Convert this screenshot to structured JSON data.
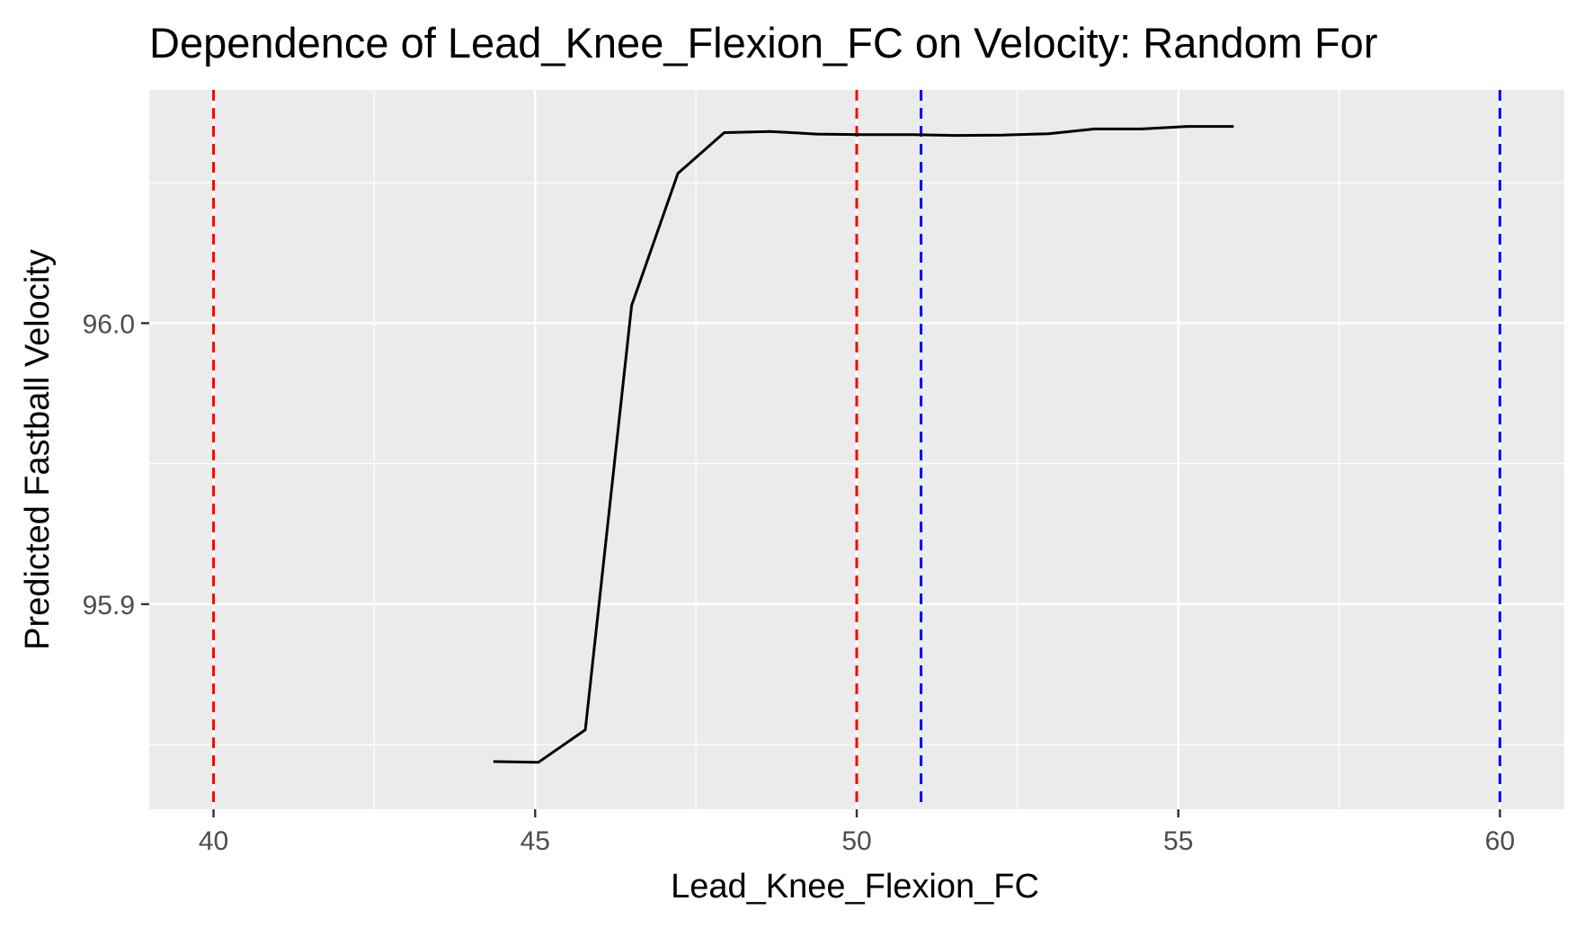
{
  "chart_data": {
    "type": "line",
    "title": "Dependence of Lead_Knee_Flexion_FC on Velocity: Random For",
    "xlabel": "Lead_Knee_Flexion_FC",
    "ylabel": "Predicted Fastball Velocity",
    "xlim": [
      39.0,
      61.0
    ],
    "ylim": [
      95.827,
      96.083
    ],
    "x_ticks": [
      40,
      45,
      50,
      55,
      60
    ],
    "x_tick_labels": [
      "40",
      "45",
      "50",
      "55",
      "60"
    ],
    "y_ticks": [
      95.9,
      96.0
    ],
    "y_tick_labels": [
      "95.9",
      "96.0"
    ],
    "grid": true,
    "series": [
      {
        "color": "#000000",
        "x": [
          44.35,
          45.05,
          45.78,
          46.5,
          47.22,
          47.94,
          48.66,
          49.38,
          50.1,
          50.82,
          51.54,
          52.26,
          52.98,
          53.7,
          54.42,
          55.14,
          55.86
        ],
        "y": [
          95.844,
          95.8437,
          95.8553,
          96.0063,
          96.0533,
          96.0678,
          96.0682,
          96.0673,
          96.0671,
          96.0671,
          96.0668,
          96.0669,
          96.0674,
          96.0691,
          96.0691,
          96.07,
          96.07
        ]
      }
    ],
    "reference_lines": [
      {
        "axis": "x",
        "value": 40,
        "color": "#ff0000",
        "style": "dashed"
      },
      {
        "axis": "x",
        "value": 50,
        "color": "#ff0000",
        "style": "dashed"
      },
      {
        "axis": "x",
        "value": 51,
        "color": "#0000ff",
        "style": "dashed"
      },
      {
        "axis": "x",
        "value": 60,
        "color": "#0000ff",
        "style": "dashed"
      }
    ],
    "colors": {
      "panel_background": "#ebebeb",
      "grid": "#ffffff",
      "line": "#000000"
    }
  }
}
